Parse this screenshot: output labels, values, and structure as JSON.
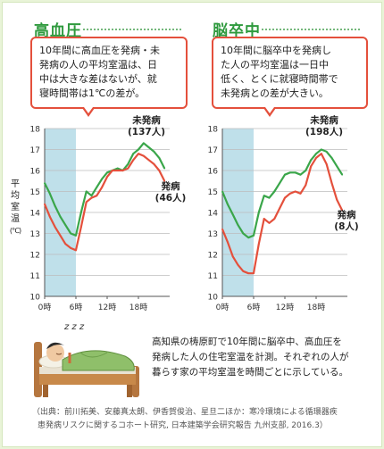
{
  "panels": {
    "left": {
      "title": "高血圧",
      "callout": [
        "10年間に高血圧を発病・未",
        "発病の人の平均室温は、日",
        "中は大きな差はないが、就",
        "寝時間帯は1℃の差が。"
      ]
    },
    "right": {
      "title": "脳卒中",
      "callout": [
        "10年間に脳卒中を発病し",
        "た人の平均室温は一日中",
        "低く、とくに就寝時間帯で",
        "未発病との差が大きい。"
      ]
    }
  },
  "axis": {
    "ylabel_chars": [
      "平",
      "均",
      "室",
      "温",
      "(℃)"
    ]
  },
  "description": [
    "高知県の梼原町で10年間に脳卒中、高血圧を",
    "発病した人の住宅室温を計測。それぞれの人が",
    "暮らす家の平均室温を時間ごとに示している。"
  ],
  "citation": [
    "（出典：前川拓美、安藤真太朗、伊香賀俊治、星旦二ほか：寒冷環境による循環器疾",
    "患発病リスクに関するコホート研究, 日本建築学会研究報告 九州支部, 2016.3）"
  ],
  "illustration": {
    "sleep_text": "z z z"
  },
  "colors": {
    "non_onset": "#3aa64a",
    "onset": "#e4503c",
    "sleep_band": "#bfe0ea",
    "accent": "#2f9a3e"
  },
  "chart_data": [
    {
      "type": "line",
      "title": "高血圧",
      "ylabel": "平均室温（℃）",
      "xlabel": "",
      "x": [
        0,
        1,
        2,
        3,
        4,
        5,
        6,
        7,
        8,
        9,
        10,
        11,
        12,
        13,
        14,
        15,
        16,
        17,
        18,
        19,
        20,
        21,
        22,
        23
      ],
      "xticks": [
        0,
        6,
        12,
        18
      ],
      "xtick_labels": [
        "0時",
        "6時",
        "12時",
        "18時"
      ],
      "ylim": [
        10,
        18
      ],
      "yticks": [
        10,
        11,
        12,
        13,
        14,
        15,
        16,
        17,
        18
      ],
      "shaded_band": {
        "from": 0,
        "to": 6,
        "label": ""
      },
      "series": [
        {
          "name": "未発病",
          "count": "(137人)",
          "values": [
            15.4,
            14.9,
            14.3,
            13.8,
            13.4,
            13.0,
            12.9,
            14.0,
            15.0,
            14.8,
            15.2,
            15.6,
            15.9,
            16.0,
            16.1,
            16.0,
            16.3,
            16.8,
            17.0,
            17.3,
            17.1,
            16.9,
            16.6,
            16.1
          ]
        },
        {
          "name": "発病",
          "count": "(46人)",
          "values": [
            14.4,
            13.8,
            13.3,
            12.9,
            12.5,
            12.3,
            12.2,
            13.3,
            14.5,
            14.7,
            14.8,
            15.2,
            15.7,
            16.0,
            16.0,
            16.0,
            16.1,
            16.5,
            16.8,
            16.7,
            16.5,
            16.3,
            16.0,
            15.5
          ]
        }
      ]
    },
    {
      "type": "line",
      "title": "脳卒中",
      "ylabel": "平均室温（℃）",
      "xlabel": "",
      "x": [
        0,
        1,
        2,
        3,
        4,
        5,
        6,
        7,
        8,
        9,
        10,
        11,
        12,
        13,
        14,
        15,
        16,
        17,
        18,
        19,
        20,
        21,
        22,
        23
      ],
      "xticks": [
        0,
        6,
        12,
        18
      ],
      "xtick_labels": [
        "0時",
        "6時",
        "12時",
        "18時"
      ],
      "ylim": [
        10,
        18
      ],
      "yticks": [
        10,
        11,
        12,
        13,
        14,
        15,
        16,
        17,
        18
      ],
      "shaded_band": {
        "from": 0,
        "to": 6,
        "label": ""
      },
      "series": [
        {
          "name": "未発病",
          "count": "(198人)",
          "values": [
            15.0,
            14.4,
            13.9,
            13.4,
            13.0,
            12.8,
            12.9,
            14.0,
            14.8,
            14.7,
            15.0,
            15.4,
            15.8,
            15.9,
            15.9,
            15.8,
            16.0,
            16.5,
            16.8,
            17.0,
            16.9,
            16.6,
            16.2,
            15.8
          ]
        },
        {
          "name": "発病",
          "count": "(8人)",
          "values": [
            13.2,
            12.6,
            11.9,
            11.5,
            11.2,
            11.1,
            11.1,
            12.5,
            13.7,
            13.5,
            13.7,
            14.2,
            14.7,
            14.9,
            15.0,
            14.9,
            15.3,
            16.2,
            16.6,
            16.8,
            16.3,
            15.4,
            14.6,
            14.1
          ]
        }
      ]
    }
  ]
}
